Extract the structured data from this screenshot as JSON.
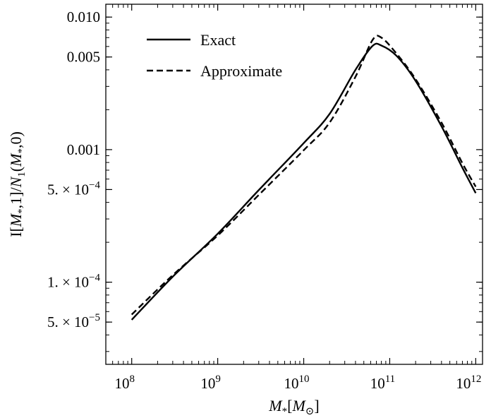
{
  "chart_data": {
    "type": "line",
    "title": "",
    "xlabel": "M*[M⊙]",
    "ylabel": "I[M*,1]/N1(M*,0)",
    "x_scale": "log",
    "y_scale": "log",
    "xlim": [
      50000000.0,
      1200000000000.0
    ],
    "ylim": [
      2.4e-05,
      0.0125
    ],
    "x_ticks": [
      {
        "value": 100000000.0,
        "label": "10",
        "exp": "8"
      },
      {
        "value": 1000000000.0,
        "label": "10",
        "exp": "9"
      },
      {
        "value": 10000000000.0,
        "label": "10",
        "exp": "10"
      },
      {
        "value": 100000000000.0,
        "label": "10",
        "exp": "11"
      },
      {
        "value": 1000000000000.0,
        "label": "10",
        "exp": "12"
      }
    ],
    "y_ticks": [
      {
        "value": 0.01,
        "label": "0.010",
        "exp": ""
      },
      {
        "value": 0.005,
        "label": "0.005",
        "exp": ""
      },
      {
        "value": 0.001,
        "label": "0.001",
        "exp": ""
      },
      {
        "value": 0.0005,
        "label": "5. × 10",
        "exp": "−4"
      },
      {
        "value": 0.0001,
        "label": "1. × 10",
        "exp": "−4"
      },
      {
        "value": 5e-05,
        "label": "5. × 10",
        "exp": "−5"
      }
    ],
    "legend_position": "top-left",
    "grid": false,
    "series": [
      {
        "name": "Exact",
        "style": "solid",
        "color": "#000000",
        "x": [
          100000000.0,
          300000000.0,
          1000000000.0,
          3000000000.0,
          10000000000.0,
          20000000000.0,
          40000000000.0,
          63000000000.0,
          80000000000.0,
          120000000000.0,
          200000000000.0,
          400000000000.0,
          700000000000.0,
          1000000000000.0
        ],
        "y": [
          5.2e-05,
          0.00011,
          0.000232,
          0.000495,
          0.00112,
          0.00186,
          0.004,
          0.00605,
          0.0061,
          0.0051,
          0.0033,
          0.0015,
          0.00073,
          0.00047
        ]
      },
      {
        "name": "Approximate",
        "style": "dashed",
        "color": "#000000",
        "x": [
          100000000.0,
          300000000.0,
          1000000000.0,
          3000000000.0,
          10000000000.0,
          20000000000.0,
          40000000000.0,
          63000000000.0,
          80000000000.0,
          120000000000.0,
          200000000000.0,
          400000000000.0,
          700000000000.0,
          1000000000000.0
        ],
        "y": [
          5.7e-05,
          0.000113,
          0.000225,
          0.000455,
          0.00099,
          0.0016,
          0.00355,
          0.0067,
          0.007,
          0.0053,
          0.0034,
          0.0016,
          0.00079,
          0.000525
        ]
      }
    ]
  }
}
